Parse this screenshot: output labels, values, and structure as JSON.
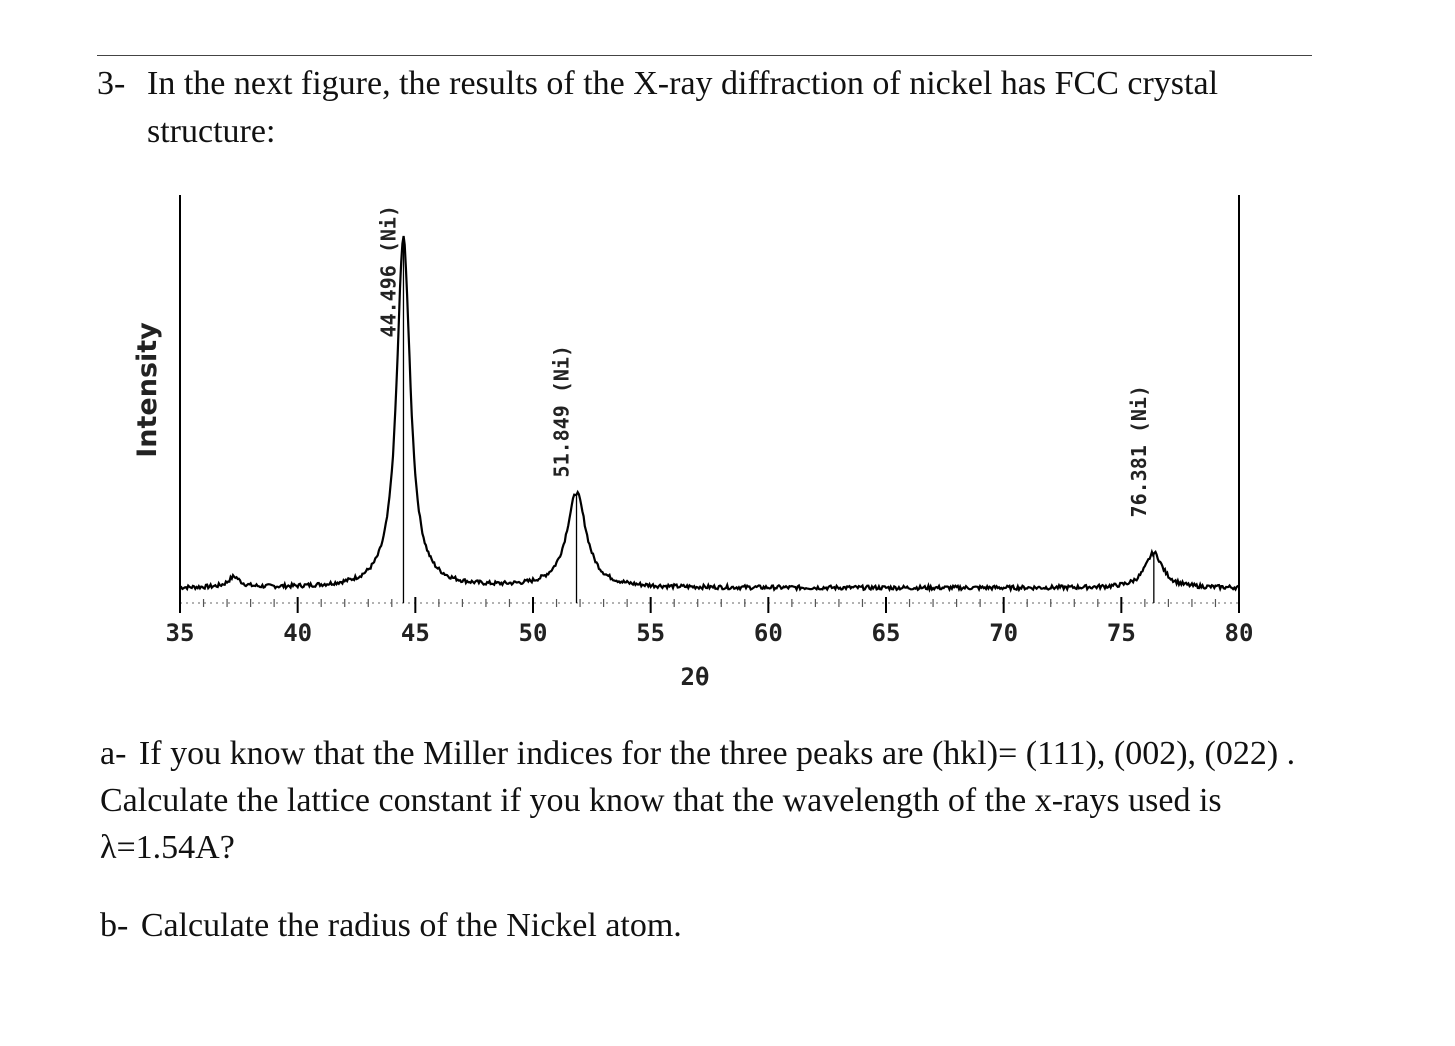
{
  "question": {
    "number": "3-",
    "text_line1": "In the next figure, the results of the X-ray diffraction of nickel has FCC crystal",
    "text_line2": "structure:"
  },
  "chart_data": {
    "type": "line",
    "title": "",
    "xlabel": "2θ",
    "ylabel": "Intensity",
    "xlim": [
      35,
      80
    ],
    "x_ticks": [
      "35",
      "40",
      "45",
      "50",
      "55",
      "60",
      "65",
      "70",
      "75",
      "80"
    ],
    "grid": false,
    "legend": "none",
    "line_color": "#000000",
    "annotations": [
      {
        "text": "44.496 (Ni)",
        "x": 44.496
      },
      {
        "text": "51.849 (Ni)",
        "x": 51.849
      },
      {
        "text": "76.381 (Ni)",
        "x": 76.381
      }
    ],
    "peaks": [
      {
        "x": 44.496,
        "relative_intensity": 1.0
      },
      {
        "x": 51.849,
        "relative_intensity": 0.27
      },
      {
        "x": 76.381,
        "relative_intensity": 0.1
      },
      {
        "x": 37.3,
        "relative_intensity": 0.03
      }
    ],
    "baseline_relative": 0.02
  },
  "parts": {
    "a_label": "a-",
    "a_text": "If you know that the Miller indices for the three peaks are (hkl)= (111), (002), (022) . Calculate the lattice constant if you know that the wavelength of the x-rays used is λ=1.54A?",
    "b_label": "b-",
    "b_text": "Calculate the radius of the Nickel atom."
  }
}
